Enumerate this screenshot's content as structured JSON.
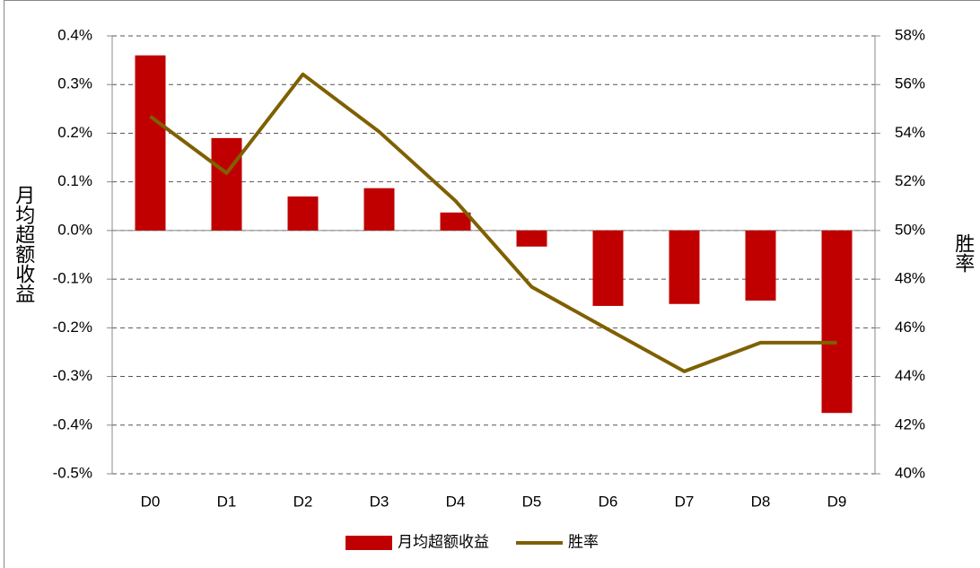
{
  "chart_data": {
    "type": "bar-line",
    "categories": [
      "D0",
      "D1",
      "D2",
      "D3",
      "D4",
      "D5",
      "D6",
      "D7",
      "D8",
      "D9"
    ],
    "series": [
      {
        "name": "月均超额收益",
        "type": "bar",
        "color": "#c00000",
        "values": [
          0.36,
          0.19,
          0.07,
          0.087,
          0.037,
          -0.033,
          -0.155,
          -0.151,
          -0.144,
          -0.375
        ]
      },
      {
        "name": "胜率",
        "type": "line",
        "axis": "y2",
        "color": "#7f6000",
        "values": [
          54.69,
          52.36,
          56.42,
          54.06,
          51.22,
          47.68,
          45.94,
          44.21,
          45.39,
          45.39
        ]
      }
    ],
    "ylabel": "月均超额收益",
    "y2label": "胜率",
    "ylim": [
      -0.5,
      0.4
    ],
    "yticks": [
      {
        "value": -0.5,
        "label": "-0.5%"
      },
      {
        "value": -0.4,
        "label": "-0.4%"
      },
      {
        "value": -0.3,
        "label": "-0.3%"
      },
      {
        "value": -0.2,
        "label": "-0.2%"
      },
      {
        "value": -0.1,
        "label": "-0.1%"
      },
      {
        "value": 0,
        "label": "0.0%"
      },
      {
        "value": 0.1,
        "label": "0.1%"
      },
      {
        "value": 0.2,
        "label": "0.2%"
      },
      {
        "value": 0.3,
        "label": "0.3%"
      },
      {
        "value": 0.4,
        "label": "0.4%"
      }
    ],
    "y2lim": [
      40,
      58
    ],
    "y2ticks": [
      {
        "value": 40,
        "label": "40%"
      },
      {
        "value": 42,
        "label": "42%"
      },
      {
        "value": 44,
        "label": "44%"
      },
      {
        "value": 46,
        "label": "46%"
      },
      {
        "value": 48,
        "label": "48%"
      },
      {
        "value": 50,
        "label": "50%"
      },
      {
        "value": 52,
        "label": "52%"
      },
      {
        "value": 54,
        "label": "54%"
      },
      {
        "value": 56,
        "label": "56%"
      },
      {
        "value": 58,
        "label": "58%"
      }
    ],
    "grid": true,
    "legend": "bottom"
  }
}
